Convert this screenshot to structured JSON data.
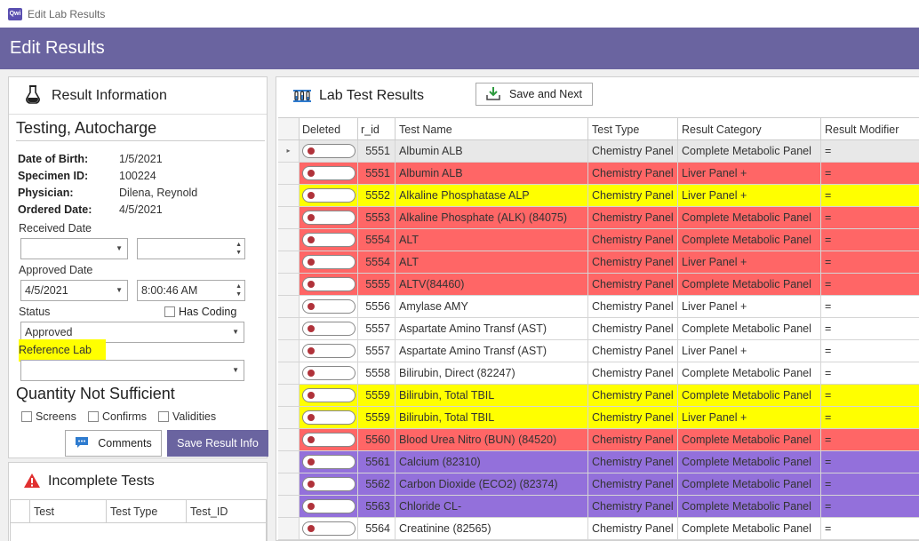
{
  "window": {
    "title": "Edit Lab Results",
    "app_icon_label": "Qwi"
  },
  "header": {
    "title": "Edit Results"
  },
  "result_info": {
    "heading": "Result Information",
    "patient_name": "Testing, Autocharge",
    "fields": [
      {
        "label": "Date of Birth:",
        "value": "1/5/2021"
      },
      {
        "label": "Specimen ID:",
        "value": "100224"
      },
      {
        "label": "Physician:",
        "value": "Dilena, Reynold"
      },
      {
        "label": "Ordered Date:",
        "value": "4/5/2021"
      }
    ],
    "received_date": {
      "label": "Received Date",
      "date": "",
      "time": ""
    },
    "approved_date": {
      "label": "Approved Date",
      "date": "4/5/2021",
      "time": "8:00:46 AM"
    },
    "status": {
      "label": "Status",
      "value": "Approved"
    },
    "has_coding": {
      "label": "Has Coding",
      "checked": false
    },
    "reference_lab": {
      "label": "Reference Lab",
      "value": "",
      "highlight": "#ffff00"
    },
    "qns": {
      "heading": "Quantity Not Sufficient",
      "options": [
        "Screens",
        "Confirms",
        "Validities"
      ]
    },
    "buttons": {
      "comments": "Comments",
      "save": "Save Result Info"
    }
  },
  "incomplete_tests": {
    "heading": "Incomplete Tests",
    "columns": [
      "Test",
      "Test Type",
      "Test_ID"
    ]
  },
  "lab_results": {
    "heading": "Lab Test Results",
    "save_next_label": "Save and Next",
    "columns": [
      "Deleted",
      "r_id",
      "Test Name",
      "Test Type",
      "Result Category",
      "Result Modifier"
    ],
    "colors": {
      "red": "#ff6666",
      "yellow": "#ffff00",
      "purple": "#9370db",
      "white": "#ffffff",
      "selected": "#e8e8e8"
    },
    "rows": [
      {
        "rid": "5551",
        "name": "Albumin ALB",
        "type": "Chemistry Panel",
        "category": "Complete Metabolic Panel",
        "modifier": "=",
        "color": "selected",
        "current": true
      },
      {
        "rid": "5551",
        "name": "Albumin ALB",
        "type": "Chemistry Panel",
        "category": "Liver Panel +",
        "modifier": "=",
        "color": "red"
      },
      {
        "rid": "5552",
        "name": "Alkaline Phosphatase ALP",
        "type": "Chemistry Panel",
        "category": "Liver Panel +",
        "modifier": "=",
        "color": "yellow"
      },
      {
        "rid": "5553",
        "name": "Alkaline Phosphate (ALK) (84075)",
        "type": "Chemistry Panel",
        "category": "Complete Metabolic Panel",
        "modifier": "=",
        "color": "red"
      },
      {
        "rid": "5554",
        "name": "ALT",
        "type": "Chemistry Panel",
        "category": "Complete Metabolic Panel",
        "modifier": "=",
        "color": "red"
      },
      {
        "rid": "5554",
        "name": "ALT",
        "type": "Chemistry Panel",
        "category": "Liver Panel +",
        "modifier": "=",
        "color": "red"
      },
      {
        "rid": "5555",
        "name": "ALTV(84460)",
        "type": "Chemistry Panel",
        "category": "Complete Metabolic Panel",
        "modifier": "=",
        "color": "red"
      },
      {
        "rid": "5556",
        "name": "Amylase AMY",
        "type": "Chemistry Panel",
        "category": "Liver Panel +",
        "modifier": "=",
        "color": "white"
      },
      {
        "rid": "5557",
        "name": "Aspartate Amino Transf (AST)",
        "type": "Chemistry Panel",
        "category": "Complete Metabolic Panel",
        "modifier": "=",
        "color": "white"
      },
      {
        "rid": "5557",
        "name": "Aspartate Amino Transf (AST)",
        "type": "Chemistry Panel",
        "category": "Liver Panel +",
        "modifier": "=",
        "color": "white"
      },
      {
        "rid": "5558",
        "name": "Bilirubin, Direct (82247)",
        "type": "Chemistry Panel",
        "category": "Complete Metabolic Panel",
        "modifier": "=",
        "color": "white"
      },
      {
        "rid": "5559",
        "name": "Bilirubin, Total TBIL",
        "type": "Chemistry Panel",
        "category": "Complete Metabolic Panel",
        "modifier": "=",
        "color": "yellow"
      },
      {
        "rid": "5559",
        "name": "Bilirubin, Total TBIL",
        "type": "Chemistry Panel",
        "category": "Liver Panel +",
        "modifier": "=",
        "color": "yellow"
      },
      {
        "rid": "5560",
        "name": "Blood Urea Nitro (BUN) (84520)",
        "type": "Chemistry Panel",
        "category": "Complete Metabolic Panel",
        "modifier": "=",
        "color": "red"
      },
      {
        "rid": "5561",
        "name": "Calcium (82310)",
        "type": "Chemistry Panel",
        "category": "Complete Metabolic Panel",
        "modifier": "=",
        "color": "purple"
      },
      {
        "rid": "5562",
        "name": "Carbon Dioxide (ECO2) (82374)",
        "type": "Chemistry Panel",
        "category": "Complete Metabolic Panel",
        "modifier": "=",
        "color": "purple"
      },
      {
        "rid": "5563",
        "name": "Chloride CL-",
        "type": "Chemistry Panel",
        "category": "Complete Metabolic Panel",
        "modifier": "=",
        "color": "purple"
      },
      {
        "rid": "5564",
        "name": "Creatinine (82565)",
        "type": "Chemistry Panel",
        "category": "Complete Metabolic Panel",
        "modifier": "=",
        "color": "white"
      }
    ]
  },
  "icons": {
    "result_info": "flask-icon",
    "lab_results": "test-tubes-icon",
    "incomplete": "warning-icon",
    "comments": "comment-icon",
    "save_next": "download-icon"
  }
}
